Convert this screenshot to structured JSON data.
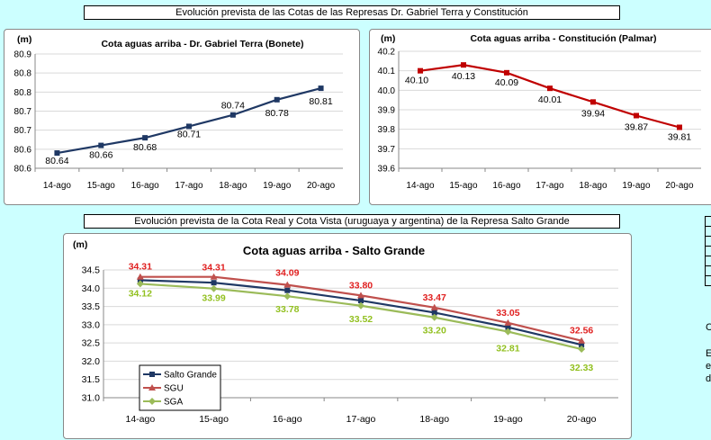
{
  "banner_top": "Evolución prevista de las Cotas de las Represas Dr. Gabriel Terra y Constitución",
  "banner_bottom": "Evolución prevista de la Cota Real y Cota Vista (uruguaya y argentina) de la Represa Salto Grande",
  "side_fragments": [
    "C",
    "E",
    "e",
    "d"
  ],
  "chart_data": [
    {
      "id": "bonete",
      "type": "line",
      "title": "Cota aguas arriba - Dr. Gabriel Terra (Bonete)",
      "ylabel": "(m)",
      "categories": [
        "14-ago",
        "15-ago",
        "16-ago",
        "17-ago",
        "18-ago",
        "19-ago",
        "20-ago"
      ],
      "ylim": [
        80.6,
        80.9
      ],
      "yticks": [
        "80.6",
        "80.6",
        "80.7",
        "80.7",
        "80.8",
        "80.8",
        "80.9"
      ],
      "series": [
        {
          "values": [
            80.64,
            80.66,
            80.68,
            80.71,
            80.74,
            80.78,
            80.81
          ],
          "labels": [
            "80.64",
            "80.66",
            "80.68",
            "80.71",
            "80.74",
            "80.78",
            "80.81"
          ],
          "color": "#1f3864",
          "marker": "square"
        }
      ],
      "grid": true
    },
    {
      "id": "palmar",
      "type": "line",
      "title": "Cota aguas arriba - Constitución (Palmar)",
      "ylabel": "(m)",
      "categories": [
        "14-ago",
        "15-ago",
        "16-ago",
        "17-ago",
        "18-ago",
        "19-ago",
        "20-ago"
      ],
      "ylim": [
        39.6,
        40.2
      ],
      "yticks": [
        "39.6",
        "39.7",
        "39.8",
        "39.9",
        "40.0",
        "40.1",
        "40.2"
      ],
      "series": [
        {
          "values": [
            40.1,
            40.13,
            40.09,
            40.01,
            39.94,
            39.87,
            39.81
          ],
          "labels": [
            "40.10",
            "40.13",
            "40.09",
            "40.01",
            "39.94",
            "39.87",
            "39.81"
          ],
          "color": "#c00000",
          "marker": "square"
        }
      ],
      "grid": true
    },
    {
      "id": "salto",
      "type": "line",
      "title": "Cota aguas arriba - Salto Grande",
      "ylabel": "(m)",
      "categories": [
        "14-ago",
        "15-ago",
        "16-ago",
        "17-ago",
        "18-ago",
        "19-ago",
        "20-ago"
      ],
      "ylim": [
        31.0,
        34.5
      ],
      "yticks": [
        "31.0",
        "31.5",
        "32.0",
        "32.5",
        "33.0",
        "33.5",
        "34.0",
        "34.5"
      ],
      "series": [
        {
          "name": "Salto Grande",
          "values": [
            34.22,
            34.15,
            33.94,
            33.66,
            33.33,
            32.93,
            32.45
          ],
          "color": "#1f3864",
          "marker": "square"
        },
        {
          "name": "SGU",
          "values": [
            34.31,
            34.31,
            34.09,
            33.8,
            33.47,
            33.05,
            32.56
          ],
          "labels": [
            "34.31",
            "34.31",
            "34.09",
            "33.80",
            "33.47",
            "33.05",
            "32.56"
          ],
          "color": "#c0504d",
          "label_color": "#e02020",
          "marker": "triangle"
        },
        {
          "name": "SGA",
          "values": [
            34.12,
            33.99,
            33.78,
            33.52,
            33.2,
            32.81,
            32.33
          ],
          "labels": [
            "34.12",
            "33.99",
            "33.78",
            "33.52",
            "33.20",
            "32.81",
            "32.33"
          ],
          "color": "#9bbb59",
          "label_color": "#92c020",
          "marker": "diamond"
        }
      ],
      "legend": "bottom-left",
      "grid": true
    }
  ]
}
